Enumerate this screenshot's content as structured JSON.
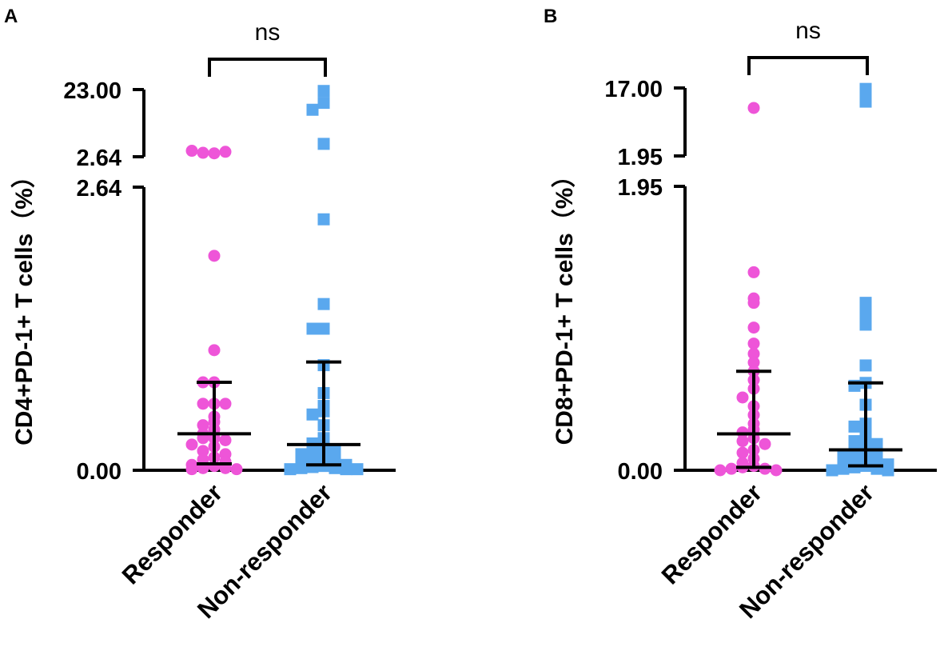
{
  "chart_data": [
    {
      "panel_label": "A",
      "type": "scatter",
      "subtype": "dot-plot-with-broken-axis",
      "ylabel": "CD4+PD-1+ T cells（%）",
      "categories": [
        "Responder",
        "Non-responder"
      ],
      "significance": "ns",
      "axis": {
        "lower_segment": {
          "range": [
            0,
            2.64
          ],
          "ticks": [
            "0.00",
            "2.64"
          ]
        },
        "upper_segment": {
          "range": [
            2.64,
            23.0
          ],
          "ticks": [
            "2.64",
            "23.00"
          ]
        }
      },
      "series": [
        {
          "name": "Responder",
          "marker": "circle",
          "color": "#ee55d8",
          "values": [
            2.95,
            3.0,
            3.1,
            3.2,
            2.0,
            1.12,
            0.82,
            0.82,
            0.62,
            0.62,
            0.62,
            0.5,
            0.45,
            0.42,
            0.38,
            0.34,
            0.3,
            0.3,
            0.28,
            0.24,
            0.22,
            0.18,
            0.15,
            0.12,
            0.1,
            0.08,
            0.05,
            0.04,
            0.02,
            0.02,
            0.01,
            0.01
          ],
          "median": 0.34,
          "iqr": [
            0.06,
            0.82
          ]
        },
        {
          "name": "Non-responder",
          "marker": "square",
          "color": "#5aa8ee",
          "values": [
            22.0,
            15.0,
            12.0,
            4.0,
            2.34,
            1.55,
            1.32,
            1.32,
            0.98,
            0.72,
            0.6,
            0.55,
            0.52,
            0.42,
            0.3,
            0.25,
            0.22,
            0.2,
            0.18,
            0.15,
            0.12,
            0.1,
            0.08,
            0.06,
            0.05,
            0.04,
            0.03,
            0.02,
            0.02,
            0.01,
            0.01,
            0.01
          ],
          "median": 0.24,
          "iqr": [
            0.05,
            1.01
          ]
        }
      ]
    },
    {
      "panel_label": "B",
      "type": "scatter",
      "subtype": "dot-plot-with-broken-axis",
      "ylabel": "CD8+PD-1+ T cells（%）",
      "categories": [
        "Responder",
        "Non-responder"
      ],
      "significance": "ns",
      "axis": {
        "lower_segment": {
          "range": [
            0,
            1.95
          ],
          "ticks": [
            "0.00",
            "1.95"
          ]
        },
        "upper_segment": {
          "range": [
            1.95,
            17.0
          ],
          "ticks": [
            "1.95",
            "17.00"
          ]
        }
      },
      "series": [
        {
          "name": "Responder",
          "marker": "circle",
          "color": "#ee55d8",
          "values": [
            9.0,
            1.36,
            1.18,
            1.15,
            0.98,
            0.87,
            0.8,
            0.74,
            0.68,
            0.62,
            0.56,
            0.5,
            0.44,
            0.38,
            0.32,
            0.28,
            0.26,
            0.22,
            0.2,
            0.18,
            0.14,
            0.12,
            0.08,
            0.05,
            0.03,
            0.02,
            0.01,
            0.01,
            0.0,
            0.0
          ],
          "median": 0.25,
          "iqr": [
            0.02,
            0.68
          ]
        },
        {
          "name": "Non-responder",
          "marker": "square",
          "color": "#5aa8ee",
          "values": [
            16.5,
            14.0,
            11.0,
            1.15,
            1.08,
            1.0,
            0.72,
            0.6,
            0.58,
            0.45,
            0.32,
            0.3,
            0.25,
            0.23,
            0.2,
            0.18,
            0.16,
            0.14,
            0.12,
            0.1,
            0.09,
            0.08,
            0.06,
            0.05,
            0.04,
            0.03,
            0.02,
            0.01,
            0.01,
            0.0,
            0.0
          ],
          "median": 0.14,
          "iqr": [
            0.03,
            0.6
          ]
        }
      ]
    }
  ]
}
